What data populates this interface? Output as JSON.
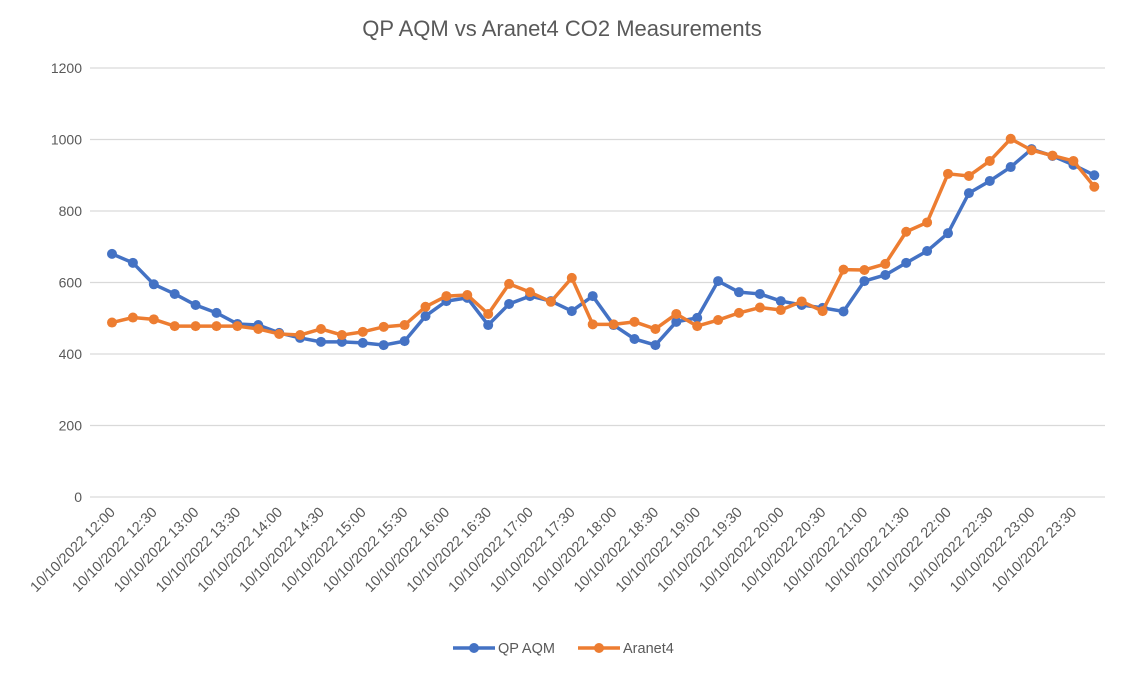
{
  "chart_data": {
    "type": "line",
    "title": "QP AQM vs Aranet4 CO2 Measurements",
    "xlabel": "",
    "ylabel": "",
    "ylim": [
      0,
      1200
    ],
    "yticks": [
      0,
      200,
      400,
      600,
      800,
      1000,
      1200
    ],
    "grid": true,
    "legend_position": "bottom",
    "x_point_interval_minutes": 15,
    "x_tick_labels": [
      "10/10/2022 12:00",
      "10/10/2022 12:30",
      "10/10/2022 13:00",
      "10/10/2022 13:30",
      "10/10/2022 14:00",
      "10/10/2022 14:30",
      "10/10/2022 15:00",
      "10/10/2022 15:30",
      "10/10/2022 16:00",
      "10/10/2022 16:30",
      "10/10/2022 17:00",
      "10/10/2022 17:30",
      "10/10/2022 18:00",
      "10/10/2022 18:30",
      "10/10/2022 19:00",
      "10/10/2022 19:30",
      "10/10/2022 20:00",
      "10/10/2022 20:30",
      "10/10/2022 21:00",
      "10/10/2022 21:30",
      "10/10/2022 22:00",
      "10/10/2022 22:30",
      "10/10/2022 23:00",
      "10/10/2022 23:30"
    ],
    "series": [
      {
        "name": "QP AQM",
        "color": "#4472C4",
        "values": [
          680,
          655,
          595,
          568,
          537,
          515,
          484,
          481,
          459,
          445,
          434,
          434,
          431,
          425,
          436,
          506,
          548,
          557,
          481,
          540,
          562,
          548,
          520,
          562,
          481,
          442,
          425,
          490,
          501,
          604,
          573,
          568,
          548,
          537,
          529,
          519,
          604,
          621,
          655,
          688,
          738,
          850,
          884,
          923,
          973,
          954,
          929,
          900
        ]
      },
      {
        "name": "Aranet4",
        "color": "#ED7D31",
        "values": [
          488,
          502,
          497,
          478,
          478,
          478,
          478,
          470,
          456,
          453,
          470,
          453,
          462,
          476,
          481,
          532,
          562,
          565,
          512,
          596,
          573,
          546,
          613,
          483,
          483,
          490,
          470,
          512,
          478,
          495,
          515,
          530,
          523,
          547,
          520,
          636,
          635,
          652,
          742,
          768,
          904,
          898,
          940,
          1002,
          970,
          955,
          940,
          868
        ]
      }
    ]
  }
}
